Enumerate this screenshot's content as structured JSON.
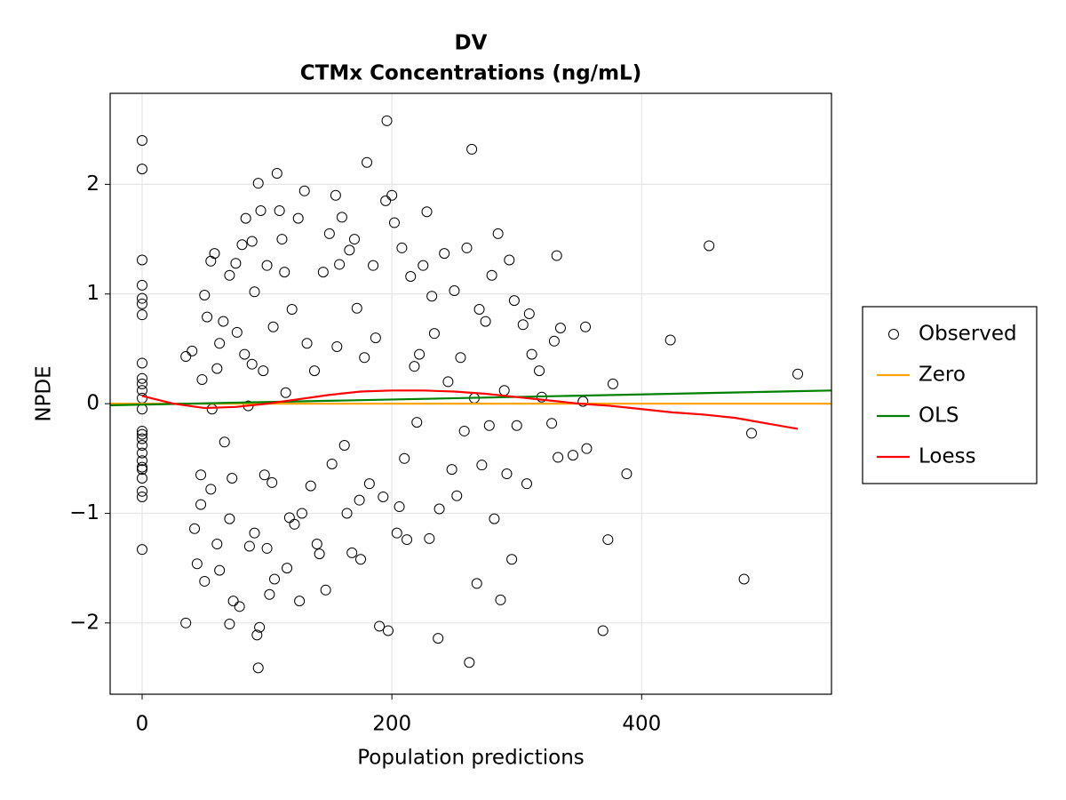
{
  "chart_data": {
    "type": "scatter",
    "title": "DV",
    "subtitle": "CTMx Concentrations (ng/mL)",
    "x_label": "Population predictions",
    "y_label": "NPDE",
    "xlim": [
      -25.6,
      552
    ],
    "ylim": [
      -2.65,
      2.83
    ],
    "xticks": [
      0,
      200,
      400
    ],
    "yticks": [
      {
        "value": -2,
        "label": "−2"
      },
      {
        "value": -1,
        "label": "−1"
      },
      0,
      1,
      2
    ],
    "grid": true,
    "legend": "right",
    "series": [
      {
        "name": "Observed",
        "type": "scatter",
        "color": "#000000",
        "x": [
          0,
          0,
          0,
          0,
          0,
          0,
          0,
          0,
          0,
          0,
          0,
          0,
          0,
          0,
          0,
          0,
          0,
          0,
          0,
          0,
          0,
          0,
          0,
          0,
          0,
          35,
          40,
          35,
          42,
          44,
          47,
          47,
          48,
          50,
          52,
          50,
          55,
          58,
          55,
          56,
          60,
          62,
          60,
          62,
          65,
          66,
          70,
          70,
          72,
          70,
          75,
          76,
          73,
          78,
          80,
          82,
          83,
          85,
          86,
          88,
          88,
          90,
          90,
          92,
          93,
          94,
          95,
          93,
          97,
          98,
          100,
          100,
          102,
          104,
          105,
          106,
          108,
          110,
          112,
          114,
          115,
          116,
          118,
          120,
          122,
          125,
          126,
          128,
          130,
          132,
          135,
          138,
          140,
          142,
          145,
          147,
          150,
          152,
          155,
          156,
          158,
          160,
          162,
          164,
          166,
          168,
          170,
          172,
          174,
          175,
          178,
          180,
          182,
          185,
          187,
          190,
          193,
          195,
          196,
          197,
          200,
          202,
          204,
          206,
          208,
          210,
          212,
          215,
          218,
          220,
          222,
          225,
          228,
          230,
          232,
          234,
          237,
          238,
          242,
          245,
          248,
          250,
          252,
          255,
          258,
          260,
          262,
          264,
          266,
          268,
          270,
          272,
          275,
          278,
          280,
          282,
          285,
          287,
          290,
          292,
          294,
          296,
          298,
          300,
          305,
          308,
          310,
          312,
          318,
          320,
          328,
          330,
          332,
          333,
          335,
          345,
          353,
          355,
          356,
          369,
          373,
          377,
          388,
          423,
          454,
          482,
          488,
          525
        ],
        "values": [
          2.4,
          2.14,
          1.31,
          1.08,
          0.96,
          0.91,
          0.81,
          0.37,
          0.23,
          0.18,
          0.12,
          0.05,
          -0.05,
          -0.25,
          -0.28,
          -0.32,
          -0.38,
          -0.45,
          -0.52,
          -0.58,
          -0.6,
          -0.68,
          -0.8,
          -0.85,
          -1.33,
          0.43,
          0.48,
          -2.0,
          -1.14,
          -1.46,
          -0.92,
          -0.65,
          0.22,
          0.99,
          0.79,
          -1.62,
          1.3,
          1.37,
          -0.78,
          -0.05,
          0.32,
          0.55,
          -1.28,
          -1.52,
          0.75,
          -0.35,
          1.17,
          -1.05,
          -0.68,
          -2.01,
          1.28,
          0.65,
          -1.8,
          -1.85,
          1.45,
          0.45,
          1.69,
          -0.02,
          -1.3,
          1.48,
          0.36,
          1.02,
          -1.18,
          -2.11,
          2.01,
          -2.04,
          1.76,
          -2.41,
          0.3,
          -0.65,
          1.26,
          -1.32,
          -1.74,
          -0.72,
          0.7,
          -1.6,
          2.1,
          1.76,
          1.5,
          1.2,
          0.1,
          -1.5,
          -1.04,
          0.86,
          -1.1,
          1.69,
          -1.8,
          -1.0,
          1.94,
          0.55,
          -0.75,
          0.3,
          -1.28,
          -1.37,
          1.2,
          -1.7,
          1.55,
          -0.55,
          1.9,
          0.52,
          1.27,
          1.7,
          -0.38,
          -1.0,
          1.4,
          -1.36,
          1.5,
          0.87,
          -0.88,
          -1.42,
          0.42,
          2.2,
          -0.73,
          1.26,
          0.6,
          -2.03,
          -0.85,
          1.85,
          2.58,
          -2.07,
          1.9,
          1.65,
          -1.18,
          -0.94,
          1.42,
          -0.5,
          -1.24,
          1.16,
          0.34,
          -0.17,
          0.45,
          1.26,
          1.75,
          -1.23,
          0.98,
          0.64,
          -2.14,
          -0.96,
          1.37,
          0.2,
          -0.6,
          1.03,
          -0.84,
          0.42,
          -0.25,
          1.42,
          -2.36,
          2.32,
          0.05,
          -1.64,
          0.86,
          -0.56,
          0.75,
          -0.2,
          1.17,
          -1.05,
          1.55,
          -1.79,
          0.12,
          -0.64,
          1.31,
          -1.42,
          0.94,
          -0.2,
          0.72,
          -0.73,
          0.82,
          0.45,
          0.3,
          0.06,
          -0.18,
          0.57,
          1.35,
          -0.49,
          0.69,
          -0.47,
          0.02,
          0.7,
          -0.41,
          -2.07,
          -1.24,
          0.18,
          -0.64,
          0.58,
          1.44,
          -1.6,
          -0.27,
          0.27
        ]
      },
      {
        "name": "Zero",
        "type": "line",
        "color": "#ffa500",
        "x": [
          -25.6,
          552
        ],
        "values": [
          0,
          0
        ]
      },
      {
        "name": "OLS",
        "type": "line",
        "color": "#008000",
        "x": [
          -25.6,
          552
        ],
        "values": [
          -0.015,
          0.12
        ]
      },
      {
        "name": "Loess",
        "type": "line",
        "color": "#ff0000",
        "x": [
          0,
          25,
          50,
          75,
          100,
          125,
          150,
          175,
          200,
          225,
          250,
          275,
          300,
          325,
          350,
          375,
          400,
          425,
          450,
          475,
          500,
          525
        ],
        "values": [
          0.07,
          0.0,
          -0.04,
          -0.03,
          0.0,
          0.04,
          0.08,
          0.11,
          0.12,
          0.12,
          0.11,
          0.09,
          0.06,
          0.03,
          0.0,
          -0.02,
          -0.05,
          -0.08,
          -0.1,
          -0.13,
          -0.18,
          -0.23
        ]
      }
    ]
  }
}
